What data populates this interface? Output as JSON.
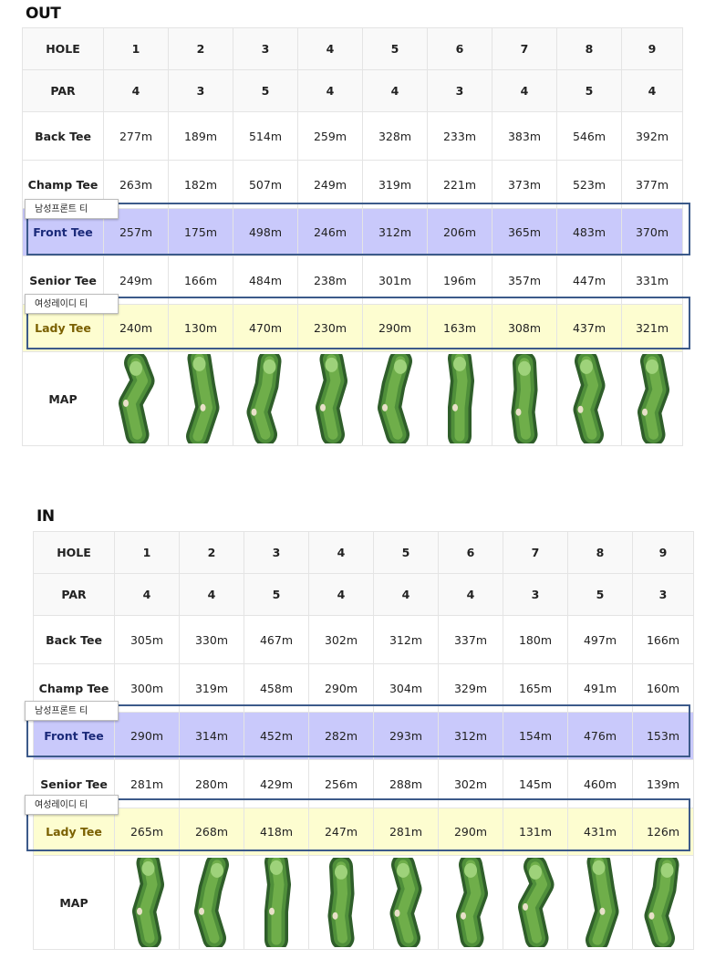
{
  "labels": {
    "hole": "HOLE",
    "par": "PAR",
    "back": "Back Tee",
    "champ": "Champ Tee",
    "front": "Front Tee",
    "senior": "Senior Tee",
    "lady": "Lady Tee",
    "map": "MAP",
    "front_tag": "남성프론트 티",
    "lady_tag": "여성레이디 티"
  },
  "colors": {
    "front_row": "#c9c9fb",
    "lady_row": "#fdfdd0",
    "highlight_border": "#3c5a8a",
    "fairway": "#6fae4a",
    "rough": "#2f5e2a"
  },
  "out": {
    "title": "OUT",
    "holes": [
      "1",
      "2",
      "3",
      "4",
      "5",
      "6",
      "7",
      "8",
      "9"
    ],
    "par": [
      "4",
      "3",
      "5",
      "4",
      "4",
      "3",
      "4",
      "5",
      "4"
    ],
    "back": [
      "277m",
      "189m",
      "514m",
      "259m",
      "328m",
      "233m",
      "383m",
      "546m",
      "392m"
    ],
    "champ": [
      "263m",
      "182m",
      "507m",
      "249m",
      "319m",
      "221m",
      "373m",
      "523m",
      "377m"
    ],
    "front": [
      "257m",
      "175m",
      "498m",
      "246m",
      "312m",
      "206m",
      "365m",
      "483m",
      "370m"
    ],
    "senior": [
      "249m",
      "166m",
      "484m",
      "238m",
      "301m",
      "196m",
      "357m",
      "447m",
      "331m"
    ],
    "lady": [
      "240m",
      "130m",
      "470m",
      "230m",
      "290m",
      "163m",
      "308m",
      "437m",
      "321m"
    ],
    "maps": [
      "hole-1-map-icon",
      "hole-2-map-icon",
      "hole-3-map-icon",
      "hole-4-map-icon",
      "hole-5-map-icon",
      "hole-6-map-icon",
      "hole-7-map-icon",
      "hole-8-map-icon",
      "hole-9-map-icon"
    ]
  },
  "in": {
    "title": "IN",
    "holes": [
      "1",
      "2",
      "3",
      "4",
      "5",
      "6",
      "7",
      "8",
      "9"
    ],
    "par": [
      "4",
      "4",
      "5",
      "4",
      "4",
      "4",
      "3",
      "5",
      "3"
    ],
    "back": [
      "305m",
      "330m",
      "467m",
      "302m",
      "312m",
      "337m",
      "180m",
      "497m",
      "166m"
    ],
    "champ": [
      "300m",
      "319m",
      "458m",
      "290m",
      "304m",
      "329m",
      "165m",
      "491m",
      "160m"
    ],
    "front": [
      "290m",
      "314m",
      "452m",
      "282m",
      "293m",
      "312m",
      "154m",
      "476m",
      "153m"
    ],
    "senior": [
      "281m",
      "280m",
      "429m",
      "256m",
      "288m",
      "302m",
      "145m",
      "460m",
      "139m"
    ],
    "lady": [
      "265m",
      "268m",
      "418m",
      "247m",
      "281m",
      "290m",
      "131m",
      "431m",
      "126m"
    ],
    "maps": [
      "hole-10-map-icon",
      "hole-11-map-icon",
      "hole-12-map-icon",
      "hole-13-map-icon",
      "hole-14-map-icon",
      "hole-15-map-icon",
      "hole-16-map-icon",
      "hole-17-map-icon",
      "hole-18-map-icon"
    ]
  }
}
